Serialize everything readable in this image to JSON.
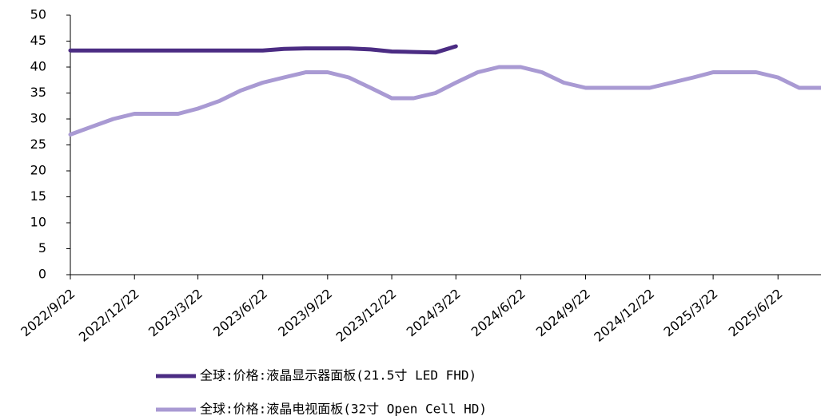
{
  "chart_data": {
    "type": "line",
    "x": [
      "2022/9/22",
      "2022/10/22",
      "2022/11/22",
      "2022/12/22",
      "2023/1/22",
      "2023/2/22",
      "2023/3/22",
      "2023/4/22",
      "2023/5/22",
      "2023/6/22",
      "2023/7/22",
      "2023/8/22",
      "2023/9/22",
      "2023/10/22",
      "2023/11/22",
      "2023/12/22",
      "2024/1/22",
      "2024/2/22",
      "2024/3/22",
      "2024/4/22",
      "2024/5/22",
      "2024/6/22",
      "2024/7/22",
      "2024/8/22",
      "2024/9/22",
      "2024/10/22",
      "2024/11/22",
      "2024/12/22",
      "2025/1/22",
      "2025/2/22",
      "2025/3/22",
      "2025/4/22",
      "2025/5/22",
      "2025/6/22",
      "2025/7/22",
      "2025/8/22"
    ],
    "series": [
      {
        "name": "全球:价格:液晶显示器面板(21.5寸 LED FHD)",
        "color": "#4b2c83",
        "values": [
          43.2,
          43.2,
          43.2,
          43.2,
          43.2,
          43.2,
          43.2,
          43.2,
          43.2,
          43.2,
          43.5,
          43.6,
          43.6,
          43.6,
          43.4,
          43.0,
          42.9,
          42.8,
          44.0,
          null,
          null,
          null,
          null,
          null,
          null,
          null,
          null,
          null,
          null,
          null,
          null,
          null,
          null,
          null,
          null,
          null
        ]
      },
      {
        "name": "全球:价格:液晶电视面板(32寸 Open Cell HD)",
        "color": "#a99ad3",
        "values": [
          27,
          28.5,
          30,
          31,
          31,
          31,
          32,
          33.5,
          35.5,
          37,
          38,
          39,
          39,
          38,
          36,
          34,
          34,
          35,
          37,
          39,
          40,
          40,
          39,
          37,
          36,
          36,
          36,
          36,
          37,
          38,
          39,
          39,
          39,
          38,
          36,
          36
        ]
      }
    ],
    "xlim": [
      "2022/9/22",
      "2025/8/22"
    ],
    "xticks": [
      "2022/9/22",
      "2022/12/22",
      "2023/3/22",
      "2023/6/22",
      "2023/9/22",
      "2023/12/22",
      "2024/3/22",
      "2024/6/22",
      "2024/9/22",
      "2024/12/22",
      "2025/3/22",
      "2025/6/22"
    ],
    "ylim": [
      0,
      50
    ],
    "yticks": [
      0,
      5,
      10,
      15,
      20,
      25,
      30,
      35,
      40,
      45,
      50
    ],
    "grid": false
  }
}
